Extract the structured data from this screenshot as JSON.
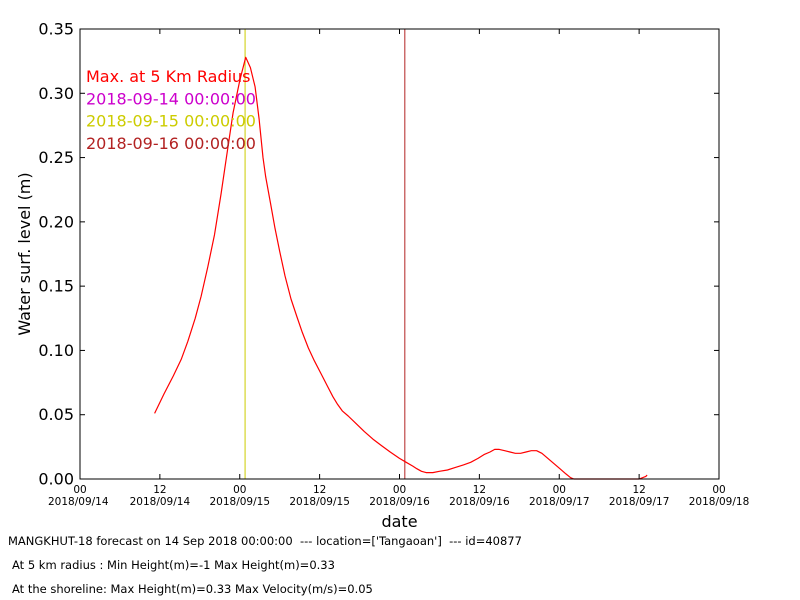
{
  "chart_data": {
    "type": "line",
    "xlabel": "date",
    "ylabel": "Water surf. level (m)",
    "ylim": [
      0,
      0.35
    ],
    "y_ticks": [
      "0.00",
      "0.05",
      "0.10",
      "0.15",
      "0.20",
      "0.25",
      "0.30",
      "0.35"
    ],
    "x_range_hours": [
      0,
      96
    ],
    "x_ticks": [
      {
        "hour": 0,
        "top": "00",
        "bottom": "2018/09/14"
      },
      {
        "hour": 12,
        "top": "12",
        "bottom": "2018/09/14"
      },
      {
        "hour": 24,
        "top": "00",
        "bottom": "2018/09/15"
      },
      {
        "hour": 36,
        "top": "12",
        "bottom": "2018/09/15"
      },
      {
        "hour": 48,
        "top": "00",
        "bottom": "2018/09/16"
      },
      {
        "hour": 60,
        "top": "12",
        "bottom": "2018/09/16"
      },
      {
        "hour": 72,
        "top": "00",
        "bottom": "2018/09/17"
      },
      {
        "hour": 84,
        "top": "12",
        "bottom": "2018/09/17"
      },
      {
        "hour": 96,
        "top": "00",
        "bottom": "2018/09/18"
      }
    ],
    "legend_placement": "top-left",
    "legend": [
      {
        "label": "Max. at 5 Km Radius",
        "color": "#ff0000"
      },
      {
        "label": "2018-09-14 00:00:00",
        "color": "#cc00cc"
      },
      {
        "label": "2018-09-15 00:00:00",
        "color": "#cccc00"
      },
      {
        "label": "2018-09-16 00:00:00",
        "color": "#b22222"
      }
    ],
    "vlines": [
      {
        "hour": 24.8,
        "color": "#cccc00"
      },
      {
        "hour": 48.8,
        "color": "#b22222"
      }
    ],
    "series": [
      {
        "name": "Max. at 5 Km Radius",
        "color": "#ff0000",
        "points": [
          [
            11.2,
            0.051
          ],
          [
            12.6,
            0.066
          ],
          [
            14.0,
            0.08
          ],
          [
            15.2,
            0.093
          ],
          [
            16.2,
            0.107
          ],
          [
            17.3,
            0.125
          ],
          [
            18.2,
            0.142
          ],
          [
            19.2,
            0.165
          ],
          [
            20.2,
            0.19
          ],
          [
            21.2,
            0.222
          ],
          [
            22.0,
            0.25
          ],
          [
            23.0,
            0.285
          ],
          [
            24.0,
            0.31
          ],
          [
            24.9,
            0.328
          ],
          [
            25.6,
            0.32
          ],
          [
            26.3,
            0.305
          ],
          [
            26.9,
            0.28
          ],
          [
            27.5,
            0.25
          ],
          [
            27.9,
            0.235
          ],
          [
            28.6,
            0.215
          ],
          [
            29.3,
            0.195
          ],
          [
            30.0,
            0.177
          ],
          [
            30.8,
            0.158
          ],
          [
            31.7,
            0.14
          ],
          [
            32.6,
            0.126
          ],
          [
            33.4,
            0.114
          ],
          [
            34.3,
            0.102
          ],
          [
            35.2,
            0.092
          ],
          [
            36.2,
            0.082
          ],
          [
            37.1,
            0.073
          ],
          [
            38.0,
            0.064
          ],
          [
            38.7,
            0.058
          ],
          [
            39.4,
            0.053
          ],
          [
            40.3,
            0.049
          ],
          [
            41.5,
            0.043
          ],
          [
            42.7,
            0.037
          ],
          [
            44.0,
            0.031
          ],
          [
            45.3,
            0.026
          ],
          [
            46.6,
            0.021
          ],
          [
            48.0,
            0.016
          ],
          [
            49.0,
            0.013
          ],
          [
            50.0,
            0.01
          ],
          [
            50.6,
            0.008
          ],
          [
            51.3,
            0.006
          ],
          [
            52.0,
            0.005
          ],
          [
            53.0,
            0.005
          ],
          [
            54.0,
            0.006
          ],
          [
            55.2,
            0.007
          ],
          [
            56.4,
            0.009
          ],
          [
            57.6,
            0.011
          ],
          [
            58.7,
            0.013
          ],
          [
            59.8,
            0.016
          ],
          [
            60.7,
            0.019
          ],
          [
            61.6,
            0.021
          ],
          [
            62.3,
            0.023
          ],
          [
            63.0,
            0.023
          ],
          [
            63.8,
            0.022
          ],
          [
            64.6,
            0.021
          ],
          [
            65.4,
            0.02
          ],
          [
            66.2,
            0.02
          ],
          [
            67.0,
            0.021
          ],
          [
            67.8,
            0.022
          ],
          [
            68.6,
            0.022
          ],
          [
            69.4,
            0.02
          ],
          [
            70.3,
            0.016
          ],
          [
            71.2,
            0.012
          ],
          [
            72.1,
            0.008
          ],
          [
            73.0,
            0.004
          ],
          [
            73.7,
            0.001
          ],
          [
            74.2,
            0.0
          ],
          [
            84.0,
            0.0
          ],
          [
            85.0,
            0.002
          ],
          [
            85.2,
            0.003
          ]
        ]
      }
    ]
  },
  "footer": {
    "line1": "MANGKHUT-18 forecast on 14 Sep 2018 00:00:00  --- location=['Tangaoan']  --- id=40877",
    "line2": "At 5 km radius : Min Height(m)=-1 Max Height(m)=0.33",
    "line3": "At the shoreline: Max Height(m)=0.33 Max Velocity(m/s)=0.05"
  }
}
